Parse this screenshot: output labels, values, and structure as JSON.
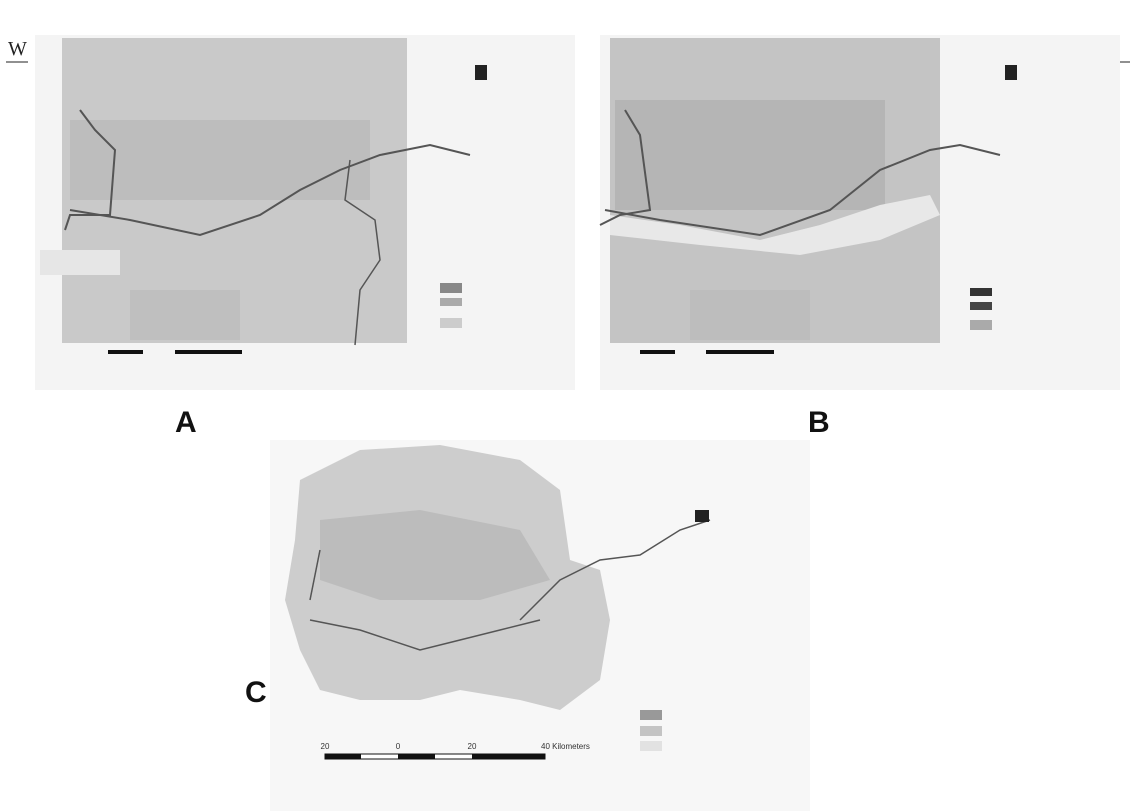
{
  "header": {
    "mark": "W"
  },
  "panels": [
    {
      "label": "A"
    },
    {
      "label": "B"
    },
    {
      "label": "C",
      "scale_bar": {
        "ticks": [
          "20",
          "0",
          "20"
        ],
        "end": "40 Kilometers"
      }
    }
  ]
}
